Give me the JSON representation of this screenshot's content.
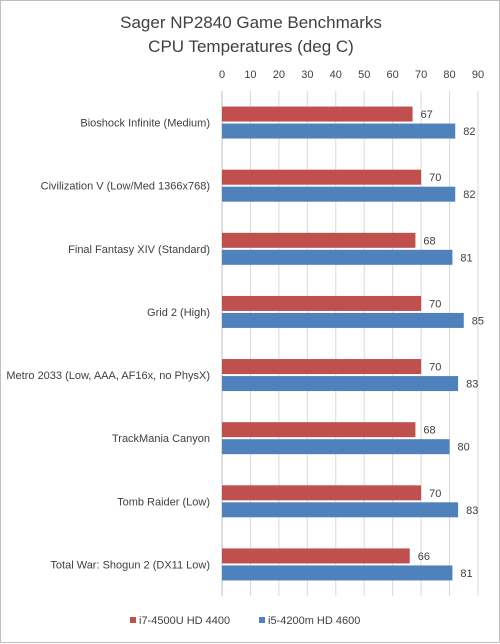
{
  "chart_data": {
    "type": "bar",
    "orientation": "horizontal",
    "title": [
      "Sager NP2840 Game Benchmarks",
      "CPU Temperatures (deg C)"
    ],
    "xlabel": "",
    "ylabel": "",
    "xlim": [
      0,
      90
    ],
    "ticks": [
      0,
      10,
      20,
      30,
      40,
      50,
      60,
      70,
      80,
      90
    ],
    "axis_position": "top",
    "grid": true,
    "legend_position": "bottom",
    "categories": [
      "Bioshock Infinite (Medium)",
      "Civilization V (Low/Med 1366x768)",
      "Final Fantasy XIV (Standard)",
      "Grid 2 (High)",
      "Metro 2033  (Low, AAA, AF16x, no PhysX)",
      "TrackMania Canyon",
      "Tomb Raider (Low)",
      "Total War: Shogun 2 (DX11 Low)"
    ],
    "series": [
      {
        "name": "i7-4500U HD 4400",
        "color": "#c0504d",
        "values": [
          67,
          70,
          68,
          70,
          70,
          68,
          70,
          66
        ]
      },
      {
        "name": "i5-4200m HD 4600",
        "color": "#4f81bd",
        "values": [
          82,
          82,
          81,
          85,
          83,
          80,
          83,
          81
        ]
      }
    ]
  }
}
